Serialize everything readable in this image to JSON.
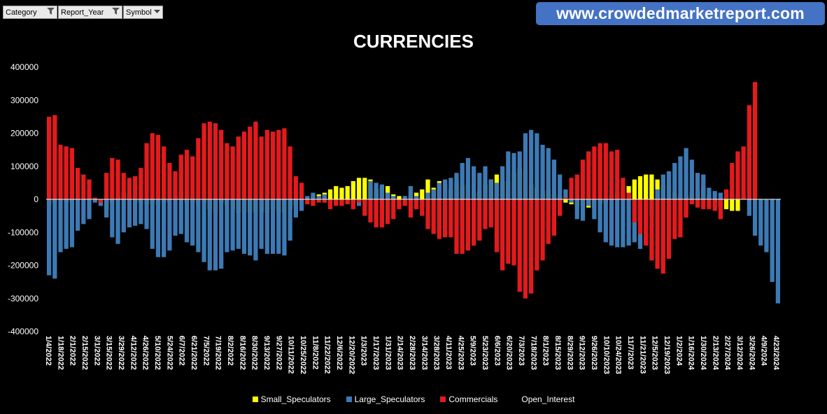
{
  "filters": [
    {
      "label": "Category",
      "icon": "filter-icon"
    },
    {
      "label": "Report_Year",
      "icon": "filter-icon"
    },
    {
      "label": "Symbol",
      "icon": "dropdown-icon"
    }
  ],
  "site_banner": "www.crowdedmarketreport.com",
  "chart_data": {
    "type": "bar",
    "title": "CURRENCIES",
    "ylim": [
      -400000,
      400000
    ],
    "yticks": [
      400000,
      300000,
      200000,
      100000,
      0,
      -100000,
      -200000,
      -300000,
      -400000
    ],
    "grid": false,
    "legend_position": "bottom",
    "x_tick_labels": [
      "1/4/2022",
      "1/18/2022",
      "2/1/2022",
      "2/15/2022",
      "3/1/2022",
      "3/15/2022",
      "3/29/2022",
      "4/12/2022",
      "4/26/2022",
      "5/10/2022",
      "5/24/2022",
      "6/7/2022",
      "6/21/2022",
      "7/5/2022",
      "7/19/2022",
      "8/2/2022",
      "8/16/2022",
      "8/30/2022",
      "9/13/2022",
      "9/27/2022",
      "10/11/2022",
      "10/25/2022",
      "11/8/2022",
      "11/22/2022",
      "12/6/2022",
      "12/20/2022",
      "1/3/2023",
      "1/17/2023",
      "1/31/2023",
      "2/14/2023",
      "2/28/2023",
      "3/14/2023",
      "3/28/2023",
      "4/11/2023",
      "4/25/2023",
      "5/9/2023",
      "5/23/2023",
      "6/6/2023",
      "6/20/2023",
      "7/3/2023",
      "7/18/2023",
      "8/1/2023",
      "8/15/2023",
      "8/29/2023",
      "9/12/2023",
      "9/26/2023",
      "10/10/2023",
      "10/24/2023",
      "11/7/2023",
      "11/21/2023",
      "12/5/2023",
      "12/19/2023",
      "1/2/2024",
      "1/16/2024",
      "1/30/2024",
      "2/13/2024",
      "2/27/2024",
      "3/12/2024",
      "3/26/2024",
      "4/9/2024",
      "4/23/2024"
    ],
    "series": [
      {
        "name": "Small_Speculators",
        "color": "#ffff00",
        "values": [
          -20000,
          -10000,
          0,
          -10000,
          -10000,
          0,
          0,
          5000,
          0,
          -10000,
          -30000,
          -10000,
          10000,
          20000,
          15000,
          -10000,
          -10000,
          -15000,
          -10000,
          -20000,
          -10000,
          -10000,
          10000,
          20000,
          -10000,
          -10000,
          -20000,
          -10000,
          -30000,
          -40000,
          -10000,
          -20000,
          -30000,
          -40000,
          -40000,
          -40000,
          -40000,
          -40000,
          -40000,
          -30000,
          -40000,
          -40000,
          -30000,
          -20000,
          0,
          0,
          10000,
          15000,
          20000,
          30000,
          40000,
          35000,
          40000,
          55000,
          65000,
          65000,
          60000,
          30000,
          35000,
          40000,
          15000,
          10000,
          0,
          10000,
          20000,
          30000,
          60000,
          35000,
          55000,
          45000,
          30000,
          55000,
          40000,
          45000,
          20000,
          25000,
          45000,
          60000,
          75000,
          55000,
          55000,
          80000,
          95000,
          85000,
          45000,
          35000,
          25000,
          30000,
          15000,
          10000,
          -10000,
          -15000,
          -20000,
          -20000,
          -25000,
          -25000,
          -15000,
          -10000,
          15000,
          20000,
          30000,
          40000,
          60000,
          70000,
          75000,
          75000,
          60000,
          40000,
          45000,
          20000,
          10000,
          10000,
          20000,
          25000,
          35000,
          15000,
          -10000,
          -20000,
          -30000,
          -35000,
          -35000
        ]
      },
      {
        "name": "Large_Speculators",
        "color": "#3d7ab5",
        "values": [
          -230000,
          -240000,
          -160000,
          -150000,
          -145000,
          -95000,
          -75000,
          -60000,
          -10000,
          -20000,
          -55000,
          -115000,
          -135000,
          -100000,
          -85000,
          -80000,
          -75000,
          -90000,
          -150000,
          -175000,
          -175000,
          -155000,
          -110000,
          -105000,
          -130000,
          -140000,
          -160000,
          -190000,
          -215000,
          -215000,
          -210000,
          -160000,
          -155000,
          -150000,
          -165000,
          -170000,
          -185000,
          -150000,
          -165000,
          -165000,
          -165000,
          -170000,
          -125000,
          -55000,
          -35000,
          10000,
          20000,
          10000,
          15000,
          -10000,
          -15000,
          -20000,
          -10000,
          -15000,
          -20000,
          -10000,
          55000,
          50000,
          45000,
          20000,
          10000,
          0,
          10000,
          40000,
          10000,
          -10000,
          20000,
          30000,
          50000,
          60000,
          65000,
          80000,
          110000,
          125000,
          100000,
          80000,
          100000,
          60000,
          50000,
          100000,
          145000,
          140000,
          145000,
          200000,
          210000,
          200000,
          165000,
          155000,
          120000,
          75000,
          30000,
          -10000,
          -60000,
          -65000,
          -20000,
          -60000,
          -100000,
          -130000,
          -140000,
          -145000,
          -145000,
          -140000,
          -130000,
          -150000,
          -85000,
          -50000,
          30000,
          75000,
          85000,
          110000,
          130000,
          155000,
          120000,
          80000,
          75000,
          35000,
          25000,
          20000,
          20000,
          25000,
          20000,
          10000,
          -50000,
          -110000,
          -140000,
          -160000,
          -250000,
          -315000
        ]
      },
      {
        "name": "Commercials",
        "color": "#e41a1c",
        "values": [
          250000,
          255000,
          165000,
          160000,
          155000,
          95000,
          75000,
          60000,
          5000,
          -10000,
          80000,
          125000,
          120000,
          80000,
          65000,
          70000,
          95000,
          170000,
          200000,
          195000,
          160000,
          110000,
          85000,
          135000,
          150000,
          130000,
          185000,
          230000,
          235000,
          230000,
          210000,
          170000,
          160000,
          190000,
          205000,
          220000,
          235000,
          190000,
          210000,
          205000,
          210000,
          215000,
          160000,
          70000,
          50000,
          -15000,
          -20000,
          -10000,
          -10000,
          -30000,
          -20000,
          -20000,
          -15000,
          -30000,
          -10000,
          -50000,
          -70000,
          -85000,
          -85000,
          -75000,
          -60000,
          -30000,
          -20000,
          -55000,
          -30000,
          -50000,
          -90000,
          -105000,
          -120000,
          -115000,
          -115000,
          -165000,
          -165000,
          -155000,
          -140000,
          -125000,
          -90000,
          -85000,
          -160000,
          -215000,
          -195000,
          -200000,
          -280000,
          -300000,
          -285000,
          -215000,
          -185000,
          -135000,
          -110000,
          -50000,
          5000,
          65000,
          75000,
          120000,
          145000,
          160000,
          170000,
          170000,
          145000,
          150000,
          65000,
          20000,
          -70000,
          -105000,
          -140000,
          -185000,
          -210000,
          -225000,
          -180000,
          -120000,
          -115000,
          -55000,
          -15000,
          -25000,
          -30000,
          -30000,
          -35000,
          -60000,
          30000,
          110000,
          145000,
          160000,
          285000,
          355000
        ]
      },
      {
        "name": "Open_Interest",
        "color": "#000000",
        "values": []
      }
    ]
  }
}
